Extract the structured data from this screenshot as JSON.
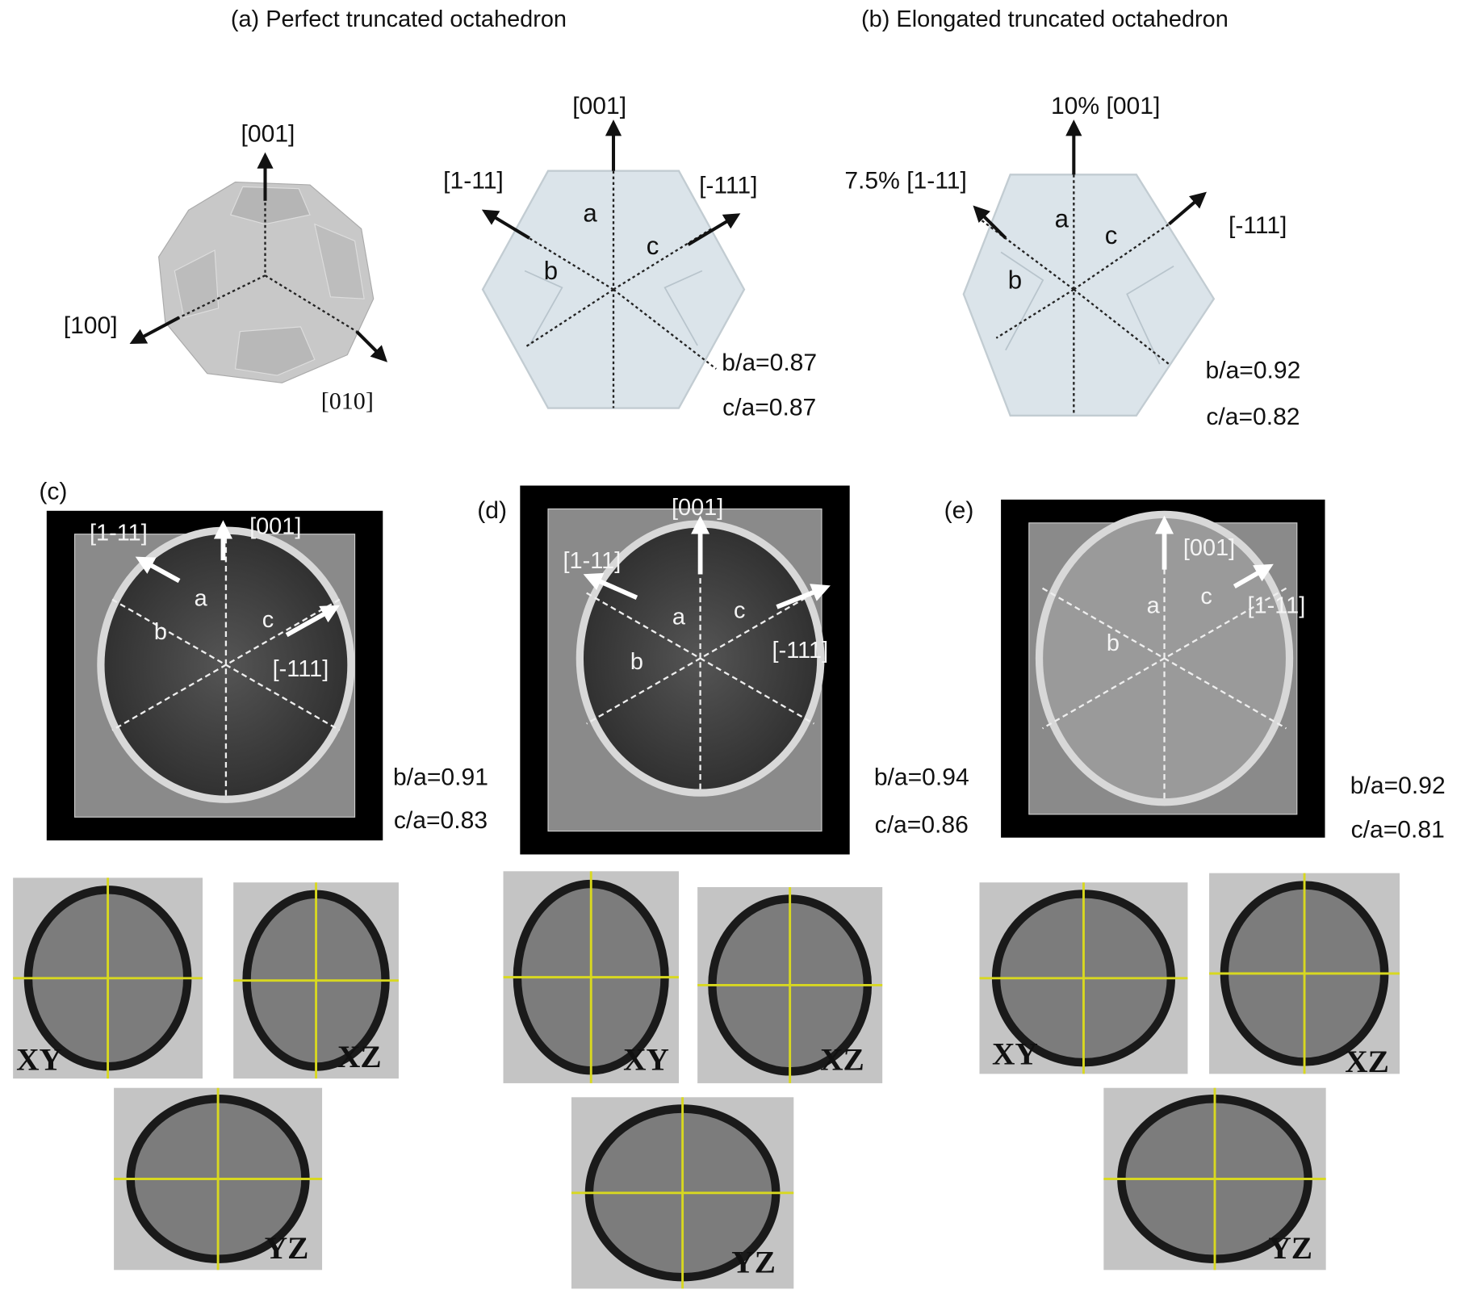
{
  "panel_a": {
    "title": "(a) Perfect truncated octahedron",
    "model_axes": [
      "[001]",
      "[100]",
      "[010]"
    ],
    "projection_axes": [
      "[001]",
      "[1-11]",
      "[-111]"
    ],
    "facets": [
      "a",
      "b",
      "c"
    ],
    "ratios": [
      "b/a=0.87",
      "c/a=0.87"
    ]
  },
  "panel_b": {
    "title": "(b) Elongated truncated octahedron",
    "projection_axes": [
      "10% [001]",
      "7.5% [1-11]",
      "[-111]"
    ],
    "facets": [
      "a",
      "b",
      "c"
    ],
    "ratios": [
      "b/a=0.92",
      "c/a=0.82"
    ]
  },
  "panel_c": {
    "label": "(c)",
    "axes": [
      "[1-11]",
      "[001]",
      "[-111]"
    ],
    "facets": [
      "a",
      "b",
      "c"
    ],
    "ratios": [
      "b/a=0.91",
      "c/a=0.83"
    ],
    "slices": [
      "XY",
      "XZ",
      "YZ"
    ]
  },
  "panel_d": {
    "label": "(d)",
    "axes": [
      "[001]",
      "[1-11]",
      "[-111]"
    ],
    "facets": [
      "a",
      "b",
      "c"
    ],
    "ratios": [
      "b/a=0.94",
      "c/a=0.86"
    ],
    "slices": [
      "XY",
      "XZ",
      "YZ"
    ]
  },
  "panel_e": {
    "label": "(e)",
    "axes": [
      "[001]",
      "[1-11]"
    ],
    "facets": [
      "a",
      "b",
      "c"
    ],
    "ratios": [
      "b/a=0.92",
      "c/a=0.81"
    ],
    "slices": [
      "XY",
      "XZ",
      "YZ"
    ]
  }
}
